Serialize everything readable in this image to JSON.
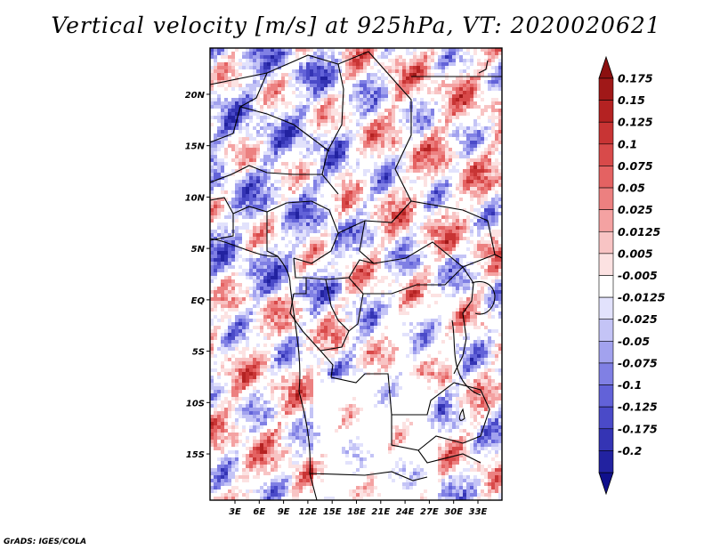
{
  "title": "Vertical velocity [m/s] at 925hPa, VT: 2020020621",
  "credit": "GrADS: IGES/COLA",
  "map": {
    "lat_range": [
      -19.5,
      24.5
    ],
    "lon_range": [
      0,
      29.5
    ],
    "lat_ticks": [
      {
        "value": 20,
        "label": "20N"
      },
      {
        "value": 15,
        "label": "15N"
      },
      {
        "value": 10,
        "label": "10N"
      },
      {
        "value": 5,
        "label": "5N"
      },
      {
        "value": 0,
        "label": "EQ"
      },
      {
        "value": -5,
        "label": "5S"
      },
      {
        "value": -10,
        "label": "10S"
      },
      {
        "value": -15,
        "label": "15S"
      }
    ],
    "lon_ticks": [
      {
        "value": 3,
        "label": "3E"
      },
      {
        "value": 6,
        "label": "6E"
      },
      {
        "value": 9,
        "label": "9E"
      },
      {
        "value": 12,
        "label": "12E"
      },
      {
        "value": 15,
        "label": "15E"
      },
      {
        "value": 18,
        "label": "18E"
      },
      {
        "value": 21,
        "label": "21E"
      },
      {
        "value": 24,
        "label": "24E"
      },
      {
        "value": 27,
        "label": "27E"
      },
      {
        "value": 30,
        "label": "30E"
      },
      {
        "value": 33,
        "label": "33E"
      }
    ]
  },
  "colorbar": {
    "bins": [
      {
        "label": "0.175",
        "color": "#a01818"
      },
      {
        "label": "0.15",
        "color": "#b42222"
      },
      {
        "label": "0.125",
        "color": "#c83434"
      },
      {
        "label": "0.1",
        "color": "#d84a4a"
      },
      {
        "label": "0.075",
        "color": "#e46262"
      },
      {
        "label": "0.05",
        "color": "#ec8080"
      },
      {
        "label": "0.025",
        "color": "#f4a2a2"
      },
      {
        "label": "0.0125",
        "color": "#f8c4c4"
      },
      {
        "label": "0.005",
        "color": "#fce2e2"
      },
      {
        "label": "-0.005",
        "color": "#ffffff"
      },
      {
        "label": "-0.0125",
        "color": "#e2e2fc"
      },
      {
        "label": "-0.025",
        "color": "#c4c4f6"
      },
      {
        "label": "-0.05",
        "color": "#a2a2ee"
      },
      {
        "label": "-0.075",
        "color": "#8080e4"
      },
      {
        "label": "-0.1",
        "color": "#6262d8"
      },
      {
        "label": "-0.125",
        "color": "#4a4ac8"
      },
      {
        "label": "-0.175",
        "color": "#3434b4"
      },
      {
        "label": "-0.2",
        "color": "#2222a0"
      }
    ],
    "top_arrow_color": "#8c1010",
    "bottom_arrow_color": "#10108c"
  }
}
